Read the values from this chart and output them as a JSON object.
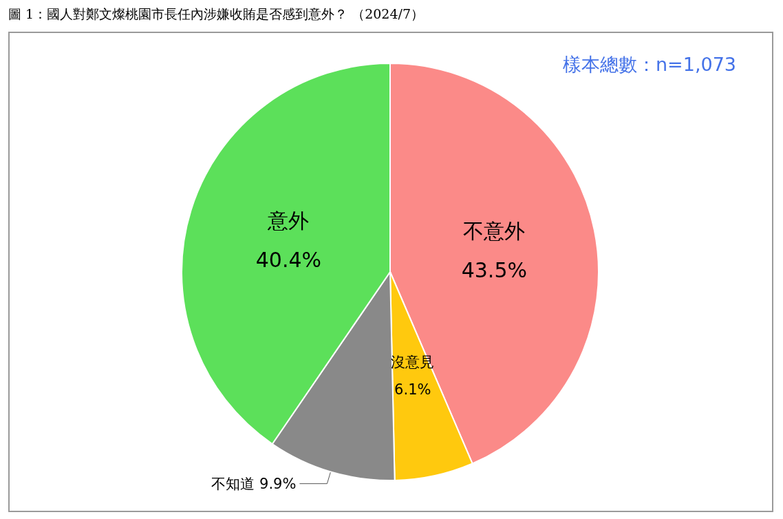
{
  "chart_data": {
    "type": "pie",
    "title": "圖 1：國人對鄭文燦桃園市長任內涉嫌收賄是否感到意外？ （2024/7）",
    "categories": [
      "不意外",
      "沒意見",
      "不知道",
      "意外"
    ],
    "values": [
      43.5,
      6.1,
      9.9,
      40.4
    ],
    "value_labels": [
      "43.5%",
      "6.1%",
      "9.9%",
      "40.4%"
    ],
    "colors": [
      "#fb8a88",
      "#ffc90e",
      "#898989",
      "#5ce05a"
    ],
    "annotations": [
      "樣本總數：n=1,073"
    ],
    "legend": false
  }
}
